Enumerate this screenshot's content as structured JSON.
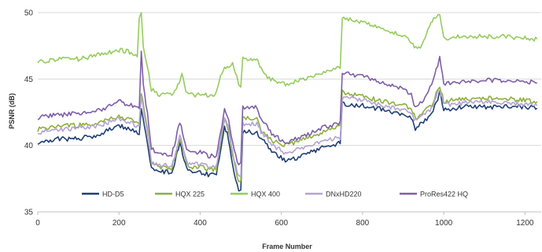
{
  "chart_data": {
    "type": "line",
    "xlabel": "Frame Number",
    "ylabel": "PSNR (dB)",
    "xlim": [
      0,
      1240
    ],
    "ylim": [
      35,
      50
    ],
    "x_ticks": [
      0,
      200,
      400,
      600,
      800,
      1000,
      1200
    ],
    "y_ticks": [
      35,
      40,
      45,
      50
    ],
    "grid": "horizontal",
    "legend_position": "bottom-inside",
    "series": [
      {
        "name": "HD-D5",
        "color": "#1f3f73",
        "points": [
          [
            0,
            40.2
          ],
          [
            50,
            40.5
          ],
          [
            100,
            40.5
          ],
          [
            150,
            40.8
          ],
          [
            200,
            41.5
          ],
          [
            230,
            41.2
          ],
          [
            250,
            40.9
          ],
          [
            255,
            42.8
          ],
          [
            270,
            40.2
          ],
          [
            280,
            38.3
          ],
          [
            300,
            38.0
          ],
          [
            330,
            38.0
          ],
          [
            340,
            39.0
          ],
          [
            350,
            40.2
          ],
          [
            360,
            39.0
          ],
          [
            370,
            38.0
          ],
          [
            400,
            38.0
          ],
          [
            420,
            37.8
          ],
          [
            440,
            37.8
          ],
          [
            450,
            39.5
          ],
          [
            460,
            41.5
          ],
          [
            470,
            40.5
          ],
          [
            480,
            38.5
          ],
          [
            495,
            36.6
          ],
          [
            500,
            36.7
          ],
          [
            505,
            41.0
          ],
          [
            540,
            41.0
          ],
          [
            550,
            40.5
          ],
          [
            580,
            39.5
          ],
          [
            610,
            38.8
          ],
          [
            650,
            39.2
          ],
          [
            700,
            39.8
          ],
          [
            745,
            40.2
          ],
          [
            750,
            43.1
          ],
          [
            800,
            43.0
          ],
          [
            850,
            42.7
          ],
          [
            900,
            42.3
          ],
          [
            920,
            42.0
          ],
          [
            930,
            41.3
          ],
          [
            950,
            41.8
          ],
          [
            970,
            42.3
          ],
          [
            985,
            43.5
          ],
          [
            990,
            44.0
          ],
          [
            1000,
            42.7
          ],
          [
            1050,
            42.9
          ],
          [
            1100,
            42.9
          ],
          [
            1150,
            42.9
          ],
          [
            1200,
            42.9
          ],
          [
            1230,
            42.8
          ]
        ]
      },
      {
        "name": "HQX 225",
        "color": "#8db03c",
        "points": [
          [
            0,
            41.2
          ],
          [
            50,
            41.5
          ],
          [
            100,
            41.5
          ],
          [
            150,
            41.7
          ],
          [
            200,
            42.2
          ],
          [
            230,
            41.9
          ],
          [
            250,
            41.6
          ],
          [
            255,
            44.0
          ],
          [
            270,
            41.2
          ],
          [
            280,
            38.6
          ],
          [
            300,
            38.3
          ],
          [
            330,
            38.3
          ],
          [
            340,
            39.3
          ],
          [
            350,
            40.6
          ],
          [
            360,
            39.4
          ],
          [
            370,
            38.4
          ],
          [
            400,
            38.4
          ],
          [
            420,
            38.2
          ],
          [
            440,
            38.2
          ],
          [
            450,
            40.0
          ],
          [
            460,
            42.0
          ],
          [
            470,
            41.2
          ],
          [
            480,
            39.2
          ],
          [
            495,
            37.3
          ],
          [
            500,
            37.4
          ],
          [
            505,
            42.1
          ],
          [
            540,
            42.0
          ],
          [
            550,
            41.2
          ],
          [
            580,
            40.3
          ],
          [
            610,
            40.0
          ],
          [
            650,
            40.4
          ],
          [
            700,
            41.0
          ],
          [
            745,
            41.4
          ],
          [
            750,
            44.0
          ],
          [
            800,
            43.7
          ],
          [
            850,
            43.3
          ],
          [
            900,
            43.0
          ],
          [
            920,
            42.8
          ],
          [
            930,
            42.0
          ],
          [
            950,
            42.5
          ],
          [
            970,
            43.0
          ],
          [
            985,
            44.2
          ],
          [
            990,
            44.5
          ],
          [
            1000,
            43.3
          ],
          [
            1050,
            43.5
          ],
          [
            1100,
            43.6
          ],
          [
            1150,
            43.5
          ],
          [
            1200,
            43.4
          ],
          [
            1230,
            43.3
          ]
        ]
      },
      {
        "name": "HQX 400",
        "color": "#96cc5c",
        "points": [
          [
            0,
            46.3
          ],
          [
            50,
            46.5
          ],
          [
            100,
            46.5
          ],
          [
            150,
            46.8
          ],
          [
            200,
            47.2
          ],
          [
            230,
            47.0
          ],
          [
            245,
            46.8
          ],
          [
            250,
            49.5
          ],
          [
            255,
            50.0
          ],
          [
            260,
            47.5
          ],
          [
            270,
            46.0
          ],
          [
            280,
            44.2
          ],
          [
            300,
            43.8
          ],
          [
            330,
            43.8
          ],
          [
            345,
            44.5
          ],
          [
            355,
            45.3
          ],
          [
            365,
            44.2
          ],
          [
            380,
            43.8
          ],
          [
            410,
            43.8
          ],
          [
            425,
            43.7
          ],
          [
            440,
            43.9
          ],
          [
            450,
            45.3
          ],
          [
            460,
            45.8
          ],
          [
            470,
            45.9
          ],
          [
            480,
            46.3
          ],
          [
            490,
            45.2
          ],
          [
            495,
            44.6
          ],
          [
            500,
            44.5
          ],
          [
            505,
            46.5
          ],
          [
            540,
            46.4
          ],
          [
            550,
            45.8
          ],
          [
            570,
            45.0
          ],
          [
            610,
            44.6
          ],
          [
            650,
            45.0
          ],
          [
            700,
            45.5
          ],
          [
            745,
            45.9
          ],
          [
            750,
            49.6
          ],
          [
            800,
            49.2
          ],
          [
            850,
            48.8
          ],
          [
            900,
            48.3
          ],
          [
            920,
            47.8
          ],
          [
            935,
            47.2
          ],
          [
            950,
            47.8
          ],
          [
            965,
            49.0
          ],
          [
            975,
            49.5
          ],
          [
            990,
            50.0
          ],
          [
            1000,
            48.1
          ],
          [
            1050,
            48.2
          ],
          [
            1100,
            48.2
          ],
          [
            1150,
            48.2
          ],
          [
            1200,
            48.1
          ],
          [
            1230,
            48.0
          ]
        ]
      },
      {
        "name": "DNxHD220",
        "color": "#b3a3d2",
        "points": [
          [
            0,
            41.0
          ],
          [
            50,
            41.2
          ],
          [
            100,
            41.3
          ],
          [
            150,
            41.5
          ],
          [
            200,
            42.0
          ],
          [
            230,
            41.7
          ],
          [
            250,
            41.4
          ],
          [
            255,
            43.6
          ],
          [
            270,
            41.0
          ],
          [
            280,
            38.8
          ],
          [
            300,
            38.5
          ],
          [
            330,
            38.5
          ],
          [
            340,
            39.5
          ],
          [
            350,
            40.8
          ],
          [
            360,
            39.6
          ],
          [
            370,
            38.6
          ],
          [
            400,
            38.6
          ],
          [
            420,
            38.4
          ],
          [
            440,
            38.4
          ],
          [
            450,
            40.2
          ],
          [
            460,
            42.2
          ],
          [
            470,
            41.4
          ],
          [
            480,
            39.4
          ],
          [
            495,
            37.6
          ],
          [
            500,
            37.7
          ],
          [
            505,
            41.6
          ],
          [
            540,
            41.6
          ],
          [
            550,
            41.0
          ],
          [
            580,
            40.0
          ],
          [
            610,
            39.4
          ],
          [
            650,
            39.8
          ],
          [
            700,
            40.3
          ],
          [
            745,
            40.6
          ],
          [
            750,
            43.6
          ],
          [
            800,
            43.4
          ],
          [
            850,
            43.0
          ],
          [
            900,
            42.7
          ],
          [
            920,
            42.5
          ],
          [
            930,
            41.8
          ],
          [
            950,
            42.3
          ],
          [
            970,
            42.8
          ],
          [
            985,
            44.0
          ],
          [
            990,
            44.3
          ],
          [
            1000,
            43.0
          ],
          [
            1050,
            43.2
          ],
          [
            1100,
            43.3
          ],
          [
            1150,
            43.2
          ],
          [
            1200,
            43.1
          ],
          [
            1230,
            43.0
          ]
        ]
      },
      {
        "name": "ProRes422 HQ",
        "color": "#7e5ea6",
        "points": [
          [
            0,
            42.1
          ],
          [
            50,
            42.3
          ],
          [
            100,
            42.4
          ],
          [
            150,
            42.6
          ],
          [
            200,
            43.3
          ],
          [
            230,
            43.0
          ],
          [
            250,
            42.7
          ],
          [
            255,
            47.2
          ],
          [
            260,
            44.5
          ],
          [
            270,
            42.5
          ],
          [
            280,
            39.8
          ],
          [
            300,
            39.3
          ],
          [
            330,
            39.3
          ],
          [
            340,
            40.5
          ],
          [
            350,
            41.8
          ],
          [
            360,
            40.6
          ],
          [
            370,
            39.5
          ],
          [
            400,
            39.5
          ],
          [
            420,
            39.2
          ],
          [
            440,
            39.2
          ],
          [
            450,
            41.0
          ],
          [
            460,
            42.6
          ],
          [
            470,
            42.0
          ],
          [
            480,
            40.2
          ],
          [
            495,
            38.5
          ],
          [
            500,
            38.6
          ],
          [
            505,
            42.9
          ],
          [
            540,
            42.9
          ],
          [
            550,
            42.0
          ],
          [
            580,
            40.8
          ],
          [
            610,
            40.2
          ],
          [
            650,
            40.6
          ],
          [
            700,
            41.3
          ],
          [
            745,
            41.7
          ],
          [
            750,
            45.5
          ],
          [
            800,
            45.2
          ],
          [
            850,
            44.7
          ],
          [
            900,
            44.2
          ],
          [
            920,
            43.8
          ],
          [
            930,
            42.8
          ],
          [
            950,
            43.5
          ],
          [
            970,
            44.5
          ],
          [
            985,
            46.0
          ],
          [
            990,
            46.6
          ],
          [
            1000,
            44.6
          ],
          [
            1050,
            44.8
          ],
          [
            1100,
            44.9
          ],
          [
            1150,
            44.9
          ],
          [
            1200,
            44.8
          ],
          [
            1230,
            44.7
          ]
        ]
      }
    ]
  }
}
